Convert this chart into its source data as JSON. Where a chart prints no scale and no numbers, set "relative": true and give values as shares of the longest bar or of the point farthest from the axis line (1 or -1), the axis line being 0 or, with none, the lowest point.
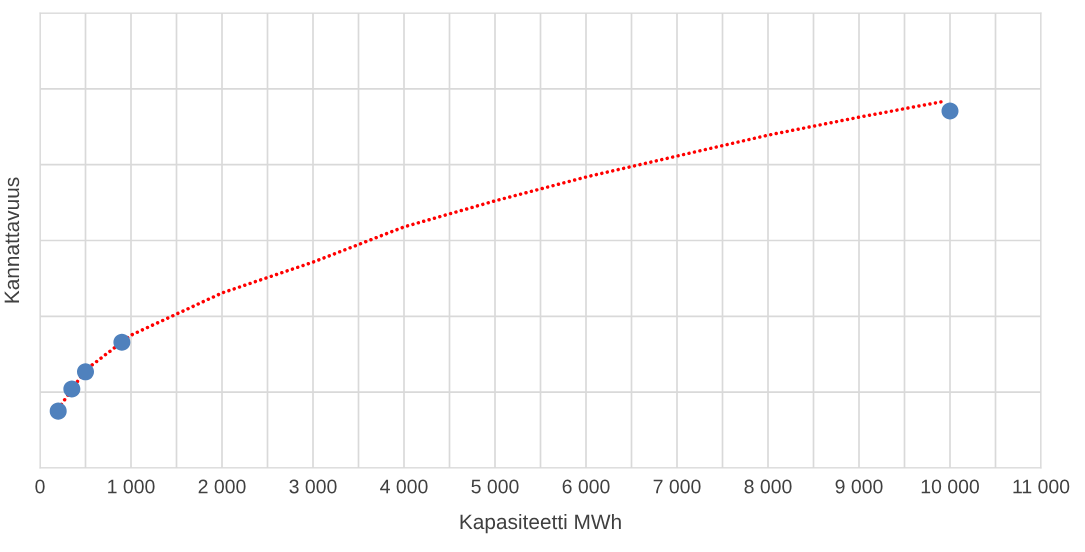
{
  "chart_data": {
    "type": "scatter",
    "xlabel": "Kapasiteetti MWh",
    "ylabel": "Kannattavuus",
    "relative": true,
    "xlim": [
      0,
      11000
    ],
    "xticks": [
      0,
      {
        "value": 500,
        "label": null
      },
      {
        "value": 1000,
        "label": "1 000"
      },
      {
        "value": 1500,
        "label": null
      },
      {
        "value": 2000,
        "label": "2 000"
      },
      {
        "value": 2500,
        "label": null
      },
      {
        "value": 3000,
        "label": "3 000"
      },
      {
        "value": 3500,
        "label": null
      },
      {
        "value": 4000,
        "label": "4 000"
      },
      {
        "value": 4500,
        "label": null
      },
      {
        "value": 5000,
        "label": "5 000"
      },
      {
        "value": 5500,
        "label": null
      },
      {
        "value": 6000,
        "label": "6 000"
      },
      {
        "value": 6500,
        "label": null
      },
      {
        "value": 7000,
        "label": "7 000"
      },
      {
        "value": 7500,
        "label": null
      },
      {
        "value": 8000,
        "label": "8 000"
      },
      {
        "value": 8500,
        "label": null
      },
      {
        "value": 9000,
        "label": "9 000"
      },
      {
        "value": 9500,
        "label": null
      },
      {
        "value": 10000,
        "label": "10 000"
      },
      {
        "value": 10500,
        "label": null
      },
      {
        "value": 11000,
        "label": "11 000"
      }
    ],
    "grid": true,
    "series": [
      {
        "marker": "circle",
        "color": "#4f81bd",
        "x": [
          200,
          350,
          500,
          900,
          10000
        ],
        "values": [
          0.155,
          0.215,
          0.262,
          0.343,
          0.973
        ]
      },
      {
        "type": "line",
        "color": "#ff0000",
        "line_style": "dotted",
        "marker": "none",
        "x": [
          200,
          500,
          1000,
          2000,
          3000,
          4000,
          5000,
          6000,
          7000,
          8000,
          9000,
          9950
        ],
        "values": [
          0.161,
          0.267,
          0.362,
          0.477,
          0.561,
          0.657,
          0.728,
          0.793,
          0.85,
          0.907,
          0.956,
          1.0
        ]
      }
    ]
  }
}
